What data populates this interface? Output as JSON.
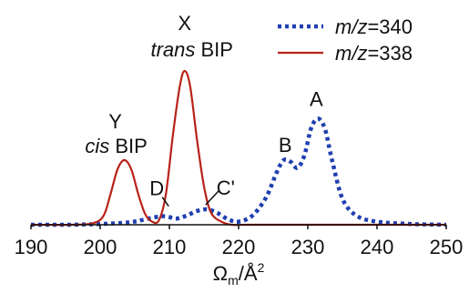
{
  "chart_data": {
    "type": "line",
    "xlabel": "Ωm/Å2",
    "xlabel_main": "Ω",
    "xlabel_sub": "m",
    "xlabel_unit": "/Å",
    "xlabel_sup": "2",
    "xlim": [
      190,
      250
    ],
    "ylim": [
      0,
      1.0
    ],
    "xticks": [
      190,
      200,
      210,
      220,
      230,
      240,
      250
    ],
    "grid": false,
    "legend_position": "top-right",
    "series": [
      {
        "name_prefix": "m/z",
        "name_value": "=340",
        "name": "m/z=340",
        "color": "#1f3fb0",
        "style": "dotted",
        "x": [
          190,
          195,
          200,
          204,
          206,
          208,
          209.5,
          211,
          212.5,
          214,
          215.5,
          217,
          218.5,
          220,
          222,
          224,
          225.5,
          226.5,
          227.5,
          228.5,
          229.5,
          230.5,
          231.5,
          232.5,
          233.5,
          235,
          237,
          240,
          245,
          250
        ],
        "y": [
          0.0,
          0.0,
          0.005,
          0.015,
          0.03,
          0.05,
          0.055,
          0.04,
          0.06,
          0.09,
          0.1,
          0.075,
          0.035,
          0.02,
          0.06,
          0.18,
          0.34,
          0.42,
          0.41,
          0.37,
          0.45,
          0.63,
          0.69,
          0.62,
          0.42,
          0.17,
          0.06,
          0.02,
          0.005,
          0.0
        ]
      },
      {
        "name_prefix": "m/z",
        "name_value": "=338",
        "name": "m/z=338",
        "color": "#b82218",
        "style": "solid",
        "x": [
          190,
          196,
          199,
          200.5,
          201.5,
          202.5,
          203.5,
          204.5,
          205.5,
          206.5,
          207.5,
          208.5,
          209.5,
          210.5,
          211.5,
          212.2,
          213,
          214,
          215,
          216,
          217.5,
          219,
          221,
          225,
          230,
          240,
          250
        ],
        "y": [
          0.0,
          0.0,
          0.01,
          0.06,
          0.2,
          0.36,
          0.42,
          0.36,
          0.2,
          0.07,
          0.02,
          0.03,
          0.2,
          0.58,
          0.9,
          1.0,
          0.9,
          0.55,
          0.25,
          0.08,
          0.02,
          0.0,
          0.0,
          0.0,
          0.0,
          0.0,
          0.0
        ]
      }
    ],
    "annotations": [
      {
        "id": "X",
        "text": "X",
        "label_italic": "trans",
        "label_rest": " BIP",
        "x": 212.2
      },
      {
        "id": "Y",
        "text": "Y",
        "label_italic": "cis",
        "label_rest": " BIP",
        "x": 203.5
      },
      {
        "id": "A",
        "text": "A",
        "x": 231.5,
        "y": 0.69
      },
      {
        "id": "B",
        "text": "B",
        "x": 227,
        "y": 0.42
      },
      {
        "id": "C",
        "text": "C'",
        "x": 215.5,
        "y": 0.1
      },
      {
        "id": "D",
        "text": "D",
        "x": 209.5,
        "y": 0.055
      }
    ]
  }
}
